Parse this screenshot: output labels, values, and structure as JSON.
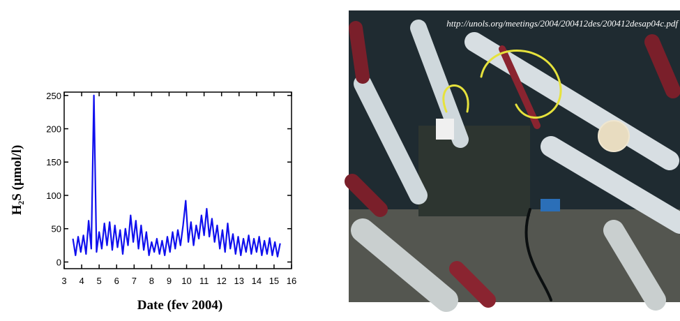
{
  "image_caption": "http://unols.org/meetings/2004/200412des/200412desap04c.pdf",
  "chart_data": {
    "type": "line",
    "x_label": "Date (fev 2004)",
    "y_label": "H₂S (µmol/l)",
    "x": [
      3.5,
      3.65,
      3.8,
      3.95,
      4.1,
      4.25,
      4.4,
      4.55,
      4.7,
      4.85,
      5.0,
      5.15,
      5.3,
      5.45,
      5.6,
      5.75,
      5.9,
      6.05,
      6.2,
      6.35,
      6.5,
      6.65,
      6.8,
      6.95,
      7.1,
      7.25,
      7.4,
      7.55,
      7.7,
      7.85,
      8.0,
      8.15,
      8.3,
      8.45,
      8.6,
      8.75,
      8.9,
      9.05,
      9.2,
      9.35,
      9.5,
      9.65,
      9.8,
      9.95,
      10.1,
      10.25,
      10.4,
      10.55,
      10.7,
      10.85,
      11.0,
      11.15,
      11.3,
      11.45,
      11.6,
      11.75,
      11.9,
      12.05,
      12.2,
      12.35,
      12.5,
      12.65,
      12.8,
      12.95,
      13.1,
      13.25,
      13.4,
      13.55,
      13.7,
      13.85,
      14.0,
      14.15,
      14.3,
      14.45,
      14.6,
      14.75,
      14.9,
      15.05,
      15.2,
      15.35
    ],
    "series": [
      {
        "color": "#1010ee",
        "values": [
          35,
          10,
          38,
          15,
          40,
          12,
          62,
          20,
          250,
          15,
          45,
          20,
          58,
          25,
          60,
          18,
          55,
          22,
          48,
          12,
          50,
          25,
          70,
          30,
          62,
          20,
          55,
          18,
          45,
          10,
          30,
          15,
          35,
          12,
          32,
          10,
          38,
          15,
          45,
          20,
          48,
          25,
          55,
          92,
          30,
          60,
          25,
          55,
          35,
          70,
          40,
          80,
          38,
          65,
          30,
          55,
          20,
          48,
          15,
          58,
          20,
          42,
          12,
          38,
          10,
          35,
          15,
          40,
          12,
          35,
          15,
          38,
          10,
          32,
          12,
          36,
          10,
          30,
          8,
          28
        ]
      }
    ],
    "xlim": [
      3,
      16
    ],
    "ylim": [
      -10,
      255
    ],
    "xticks": [
      3,
      4,
      5,
      6,
      7,
      8,
      9,
      10,
      11,
      12,
      13,
      14,
      15,
      16
    ],
    "yticks": [
      0,
      50,
      100,
      150,
      200,
      250
    ],
    "grid": false
  }
}
